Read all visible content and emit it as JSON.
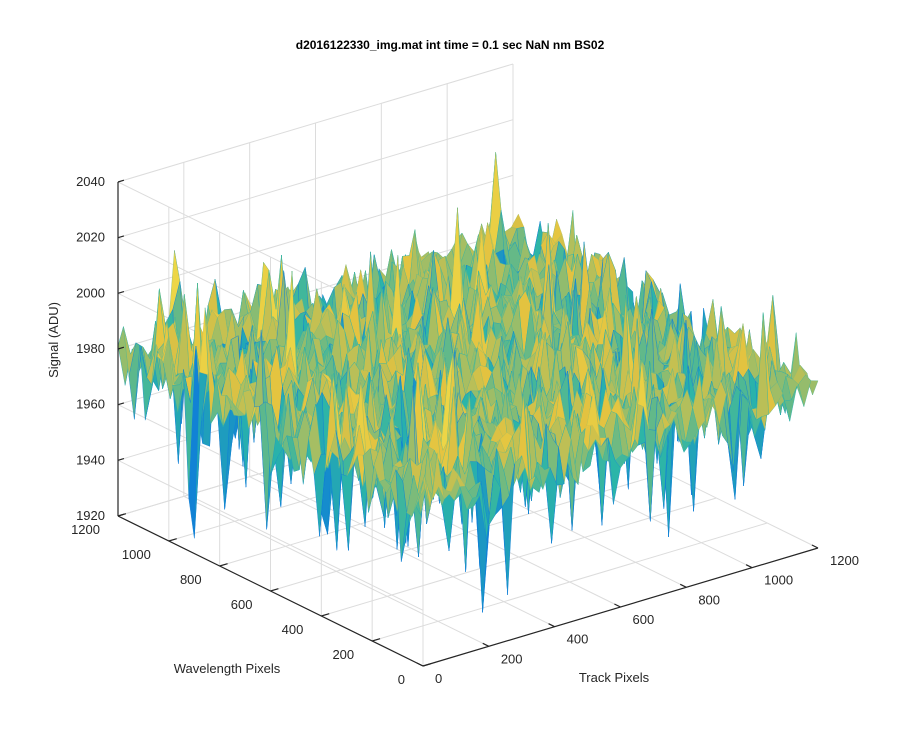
{
  "chart_data": {
    "type": "surface",
    "title": "d2016122330_img.mat int time = 0.1 sec  NaN nm BS02",
    "xlabel": "Track Pixels",
    "ylabel": "Wavelength Pixels",
    "zlabel": "Signal (ADU)",
    "xlim": [
      0,
      1200
    ],
    "ylim": [
      0,
      1200
    ],
    "zlim": [
      1920,
      2040
    ],
    "xticks": [
      "0",
      "200",
      "400",
      "600",
      "800",
      "1000",
      "1200"
    ],
    "yticks": [
      "0",
      "200",
      "400",
      "600",
      "800",
      "1000",
      "1200"
    ],
    "zticks": [
      "1920",
      "1940",
      "1960",
      "1980",
      "2000",
      "2020",
      "2040"
    ],
    "grid": true,
    "colormap": "parula",
    "z_typical_range": [
      1955,
      2000
    ],
    "z_typical_mean": 1978,
    "colors": {
      "low": "#0f7fd8",
      "mid": "#2bb5a8",
      "high": "#e3c240",
      "peak": "#f4e34a"
    }
  }
}
